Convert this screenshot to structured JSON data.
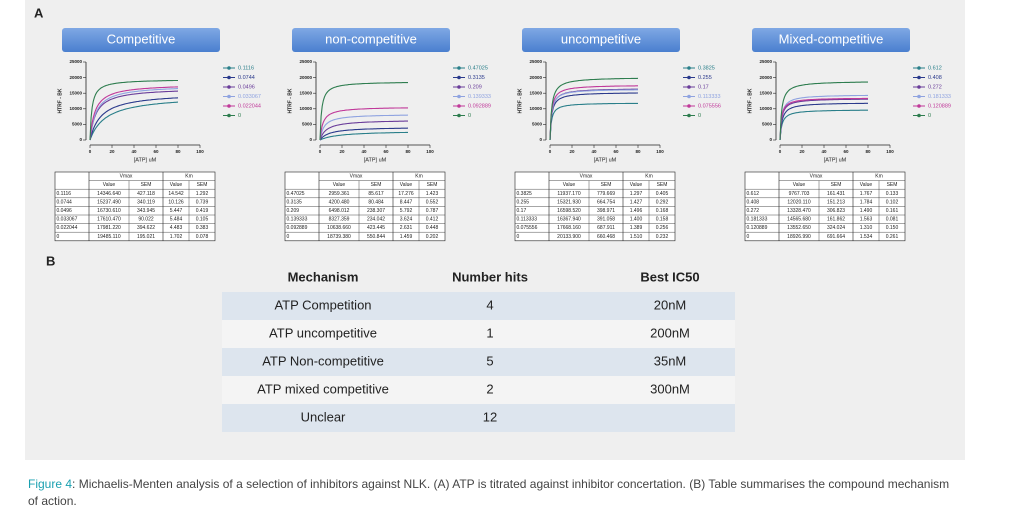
{
  "panel_a": {
    "label": "A",
    "colors": [
      "#2a7f8a",
      "#2b3a8c",
      "#6a3d9a",
      "#8fa3e0",
      "#c0399a",
      "#2e7d4f"
    ],
    "charts": [
      {
        "title": "Competitive",
        "y_label": "HTRF - BK",
        "x_label": "[ATP] uM",
        "xlim": [
          0,
          100
        ],
        "ylim": [
          0,
          25000
        ],
        "xticks": [
          0,
          20,
          40,
          60,
          80,
          100
        ],
        "yticks": [
          0,
          5000,
          10000,
          15000,
          20000,
          25000
        ],
        "legend": [
          "0.1116",
          "0.0744",
          "0.0496",
          "0.033067",
          "0.022044",
          "0"
        ],
        "table": {
          "group_headers": [
            "Vmax",
            "Km"
          ],
          "headers": [
            "Value",
            "SEM",
            "Value",
            "SEM"
          ],
          "rows": [
            [
              "0.1116",
              "14346.640",
              "427.118",
              "14.542",
              "1.292"
            ],
            [
              "0.0744",
              "15237.490",
              "340.119",
              "10.126",
              "0.739"
            ],
            [
              "0.0496",
              "16730.610",
              "343.945",
              "5.447",
              "0.419"
            ],
            [
              "0.033067",
              "17610.470",
              "90.022",
              "5.484",
              "0.105"
            ],
            [
              "0.022044",
              "17981.220",
              "394.622",
              "4.483",
              "0.383"
            ],
            [
              "0",
              "19485.110",
              "195.021",
              "1.702",
              "0.078"
            ]
          ]
        }
      },
      {
        "title": "non-competitive",
        "y_label": "HTRF - BK",
        "x_label": "[ATP] uM",
        "xlim": [
          0,
          100
        ],
        "ylim": [
          0,
          25000
        ],
        "xticks": [
          0,
          20,
          40,
          60,
          80,
          100
        ],
        "yticks": [
          0,
          5000,
          10000,
          15000,
          20000,
          25000
        ],
        "legend": [
          "0.47025",
          "0.3135",
          "0.209",
          "0.139333",
          "0.092889",
          "0"
        ],
        "table": {
          "group_headers": [
            "Vmax",
            "Km"
          ],
          "headers": [
            "Value",
            "SEM",
            "Value",
            "SEM"
          ],
          "rows": [
            [
              "0.47025",
              "2959.361",
              "85.617",
              "17.276",
              "1.423"
            ],
            [
              "0.3135",
              "4200.480",
              "80.484",
              "8.447",
              "0.552"
            ],
            [
              "0.209",
              "6498.012",
              "238.307",
              "5.792",
              "0.787"
            ],
            [
              "0.139333",
              "8327.359",
              "234.042",
              "3.624",
              "0.412"
            ],
            [
              "0.092889",
              "10638.660",
              "423.445",
              "2.631",
              "0.448"
            ],
            [
              "0",
              "18739.380",
              "550.844",
              "1.459",
              "0.202"
            ]
          ]
        }
      },
      {
        "title": "uncompetitive",
        "y_label": "HTRF - BK",
        "x_label": "[ATP] uM",
        "xlim": [
          0,
          100
        ],
        "ylim": [
          0,
          25000
        ],
        "xticks": [
          0,
          20,
          40,
          60,
          80,
          100
        ],
        "yticks": [
          0,
          5000,
          10000,
          15000,
          20000,
          25000
        ],
        "legend": [
          "0.3825",
          "0.255",
          "0.17",
          "0.113333",
          "0.075556",
          "0"
        ],
        "table": {
          "group_headers": [
            "Vmax",
            "Km"
          ],
          "headers": [
            "Value",
            "SEM",
            "Value",
            "SEM"
          ],
          "rows": [
            [
              "0.3825",
              "11937.170",
              "779.669",
              "1.297",
              "0.405"
            ],
            [
              "0.255",
              "15321.930",
              "664.754",
              "1.427",
              "0.292"
            ],
            [
              "0.17",
              "16598.520",
              "398.971",
              "1.496",
              "0.168"
            ],
            [
              "0.113333",
              "16367.940",
              "391.058",
              "1.400",
              "0.158"
            ],
            [
              "0.075556",
              "17668.160",
              "687.911",
              "1.389",
              "0.256"
            ],
            [
              "0",
              "20133.900",
              "660.468",
              "1.510",
              "0.232"
            ]
          ]
        }
      },
      {
        "title": "Mixed-competitive",
        "y_label": "HTRF - BK",
        "x_label": "[ATP] uM",
        "xlim": [
          0,
          100
        ],
        "ylim": [
          0,
          25000
        ],
        "xticks": [
          0,
          20,
          40,
          60,
          80,
          100
        ],
        "yticks": [
          0,
          5000,
          10000,
          15000,
          20000,
          25000
        ],
        "legend": [
          "0.612",
          "0.408",
          "0.272",
          "0.181333",
          "0.120889",
          "0"
        ],
        "table": {
          "group_headers": [
            "Vmax",
            "Km"
          ],
          "headers": [
            "Value",
            "SEM",
            "Value",
            "SEM"
          ],
          "rows": [
            [
              "0.612",
              "9767.703",
              "161.431",
              "1.767",
              "0.133"
            ],
            [
              "0.408",
              "12020.110",
              "151.213",
              "1.784",
              "0.102"
            ],
            [
              "0.272",
              "13328.470",
              "306.823",
              "1.490",
              "0.161"
            ],
            [
              "0.181333",
              "14565.680",
              "161.862",
              "1.563",
              "0.081"
            ],
            [
              "0.120889",
              "13552.650",
              "324.024",
              "1.310",
              "0.150"
            ],
            [
              "0",
              "18926.990",
              "691.664",
              "1.534",
              "0.261"
            ]
          ]
        }
      }
    ]
  },
  "panel_b": {
    "label": "B",
    "headers": [
      "Mechanism",
      "Number hits",
      "Best IC50"
    ],
    "rows": [
      [
        "ATP Competition",
        "4",
        "20nM"
      ],
      [
        "ATP uncompetitive",
        "1",
        "200nM"
      ],
      [
        "ATP Non-competitive",
        "5",
        "35nM"
      ],
      [
        "ATP mixed competitive",
        "2",
        "300nM"
      ],
      [
        "Unclear",
        "12",
        ""
      ]
    ]
  },
  "caption": {
    "label": "Figure 4",
    "text": ": Michaelis-Menten analysis of a selection of inhibitors against NLK. (A) ATP is titrated against inhibitor concertation. (B) Table summarises the compound mechanism of action."
  }
}
